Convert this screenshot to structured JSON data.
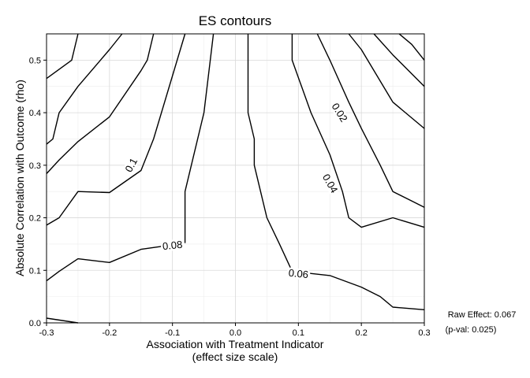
{
  "chart_data": {
    "type": "contour",
    "title": "ES contours",
    "xlabel": "Association with Treatment Indicator",
    "xlabel_sub": "(effect size scale)",
    "ylabel": "Absolute Correlation with Outcome (rho)",
    "xlim": [
      -0.3,
      0.3
    ],
    "ylim": [
      0,
      0.55
    ],
    "grid": true,
    "x_ticks": [
      {
        "value": -0.3,
        "label": "-0.3"
      },
      {
        "value": -0.2,
        "label": "-0.2"
      },
      {
        "value": -0.1,
        "label": "-0.1"
      },
      {
        "value": 0.0,
        "label": "0.0"
      },
      {
        "value": 0.1,
        "label": "0.1"
      },
      {
        "value": 0.2,
        "label": "0.2"
      },
      {
        "value": 0.3,
        "label": "0.3"
      }
    ],
    "y_ticks": [
      {
        "value": 0.0,
        "label": "0.0"
      },
      {
        "value": 0.1,
        "label": "0.1"
      },
      {
        "value": 0.2,
        "label": "0.2"
      },
      {
        "value": 0.3,
        "label": "0.3"
      },
      {
        "value": 0.4,
        "label": "0.4"
      },
      {
        "value": 0.5,
        "label": "0.5"
      }
    ],
    "annotation": {
      "line1": "Raw Effect: 0.067",
      "line2": "(p-val: 0.025)"
    },
    "contours": [
      {
        "id": "left-1",
        "points": [
          [
            -0.3,
            0.009
          ],
          [
            -0.25,
            0.0
          ]
        ]
      },
      {
        "id": "left-2",
        "points": [
          [
            -0.3,
            0.08
          ],
          [
            -0.28,
            0.098
          ],
          [
            -0.25,
            0.122
          ],
          [
            -0.2,
            0.115
          ],
          [
            -0.15,
            0.14
          ],
          [
            -0.12,
            0.145
          ],
          [
            -0.09,
            0.152
          ]
        ]
      },
      {
        "id": "left-3",
        "points": [
          [
            -0.3,
            0.186
          ],
          [
            -0.28,
            0.2
          ],
          [
            -0.25,
            0.25
          ],
          [
            -0.2,
            0.248
          ],
          [
            -0.15,
            0.29
          ],
          [
            -0.13,
            0.35
          ],
          [
            -0.08,
            0.55
          ]
        ]
      },
      {
        "id": "left-4",
        "points": [
          [
            -0.3,
            0.284
          ],
          [
            -0.28,
            0.31
          ],
          [
            -0.25,
            0.345
          ],
          [
            -0.2,
            0.392
          ],
          [
            -0.15,
            0.48
          ],
          [
            -0.14,
            0.5
          ],
          [
            -0.13,
            0.55
          ]
        ]
      },
      {
        "id": "left-5",
        "points": [
          [
            -0.3,
            0.34
          ],
          [
            -0.29,
            0.35
          ],
          [
            -0.28,
            0.4
          ],
          [
            -0.25,
            0.45
          ],
          [
            -0.2,
            0.52
          ],
          [
            -0.18,
            0.55
          ]
        ]
      },
      {
        "id": "left-6",
        "points": [
          [
            -0.3,
            0.465
          ],
          [
            -0.26,
            0.5
          ],
          [
            -0.25,
            0.55
          ]
        ]
      },
      {
        "id": "center-left",
        "points": [
          [
            -0.08,
            0.152
          ],
          [
            -0.08,
            0.2
          ],
          [
            -0.08,
            0.25
          ],
          [
            -0.07,
            0.3
          ],
          [
            -0.05,
            0.4
          ],
          [
            -0.04,
            0.5
          ],
          [
            -0.035,
            0.55
          ]
        ]
      },
      {
        "id": "center-right",
        "points": [
          [
            0.02,
            0.55
          ],
          [
            0.02,
            0.4
          ],
          [
            0.03,
            0.35
          ],
          [
            0.03,
            0.3
          ],
          [
            0.04,
            0.25
          ],
          [
            0.05,
            0.2
          ],
          [
            0.07,
            0.15
          ],
          [
            0.09,
            0.098
          ],
          [
            0.15,
            0.09
          ],
          [
            0.2,
            0.068
          ],
          [
            0.23,
            0.05
          ],
          [
            0.25,
            0.03
          ],
          [
            0.3,
            0.025
          ]
        ]
      },
      {
        "id": "right-1",
        "points": [
          [
            0.09,
            0.55
          ],
          [
            0.09,
            0.5
          ],
          [
            0.12,
            0.4
          ],
          [
            0.15,
            0.32
          ],
          [
            0.17,
            0.25
          ],
          [
            0.18,
            0.2
          ],
          [
            0.2,
            0.182
          ],
          [
            0.25,
            0.2
          ],
          [
            0.3,
            0.182
          ]
        ]
      },
      {
        "id": "right-2",
        "points": [
          [
            0.13,
            0.55
          ],
          [
            0.15,
            0.5
          ],
          [
            0.18,
            0.42
          ],
          [
            0.2,
            0.37
          ],
          [
            0.23,
            0.3
          ],
          [
            0.25,
            0.25
          ],
          [
            0.3,
            0.22
          ]
        ]
      },
      {
        "id": "right-3",
        "points": [
          [
            0.18,
            0.55
          ],
          [
            0.2,
            0.52
          ],
          [
            0.25,
            0.42
          ],
          [
            0.3,
            0.37
          ]
        ]
      },
      {
        "id": "right-4",
        "points": [
          [
            0.22,
            0.55
          ],
          [
            0.25,
            0.51
          ],
          [
            0.3,
            0.45
          ]
        ]
      },
      {
        "id": "right-5",
        "points": [
          [
            0.26,
            0.55
          ],
          [
            0.28,
            0.53
          ],
          [
            0.3,
            0.5
          ]
        ]
      }
    ],
    "contour_labels": [
      {
        "text": "0.1",
        "x": -0.165,
        "y": 0.3,
        "angle": -62
      },
      {
        "text": "0.08",
        "x": -0.1,
        "y": 0.147,
        "angle": -6
      },
      {
        "text": "0.06",
        "x": 0.1,
        "y": 0.093,
        "angle": 6
      },
      {
        "text": "0.04",
        "x": 0.15,
        "y": 0.265,
        "angle": 60
      },
      {
        "text": "0.02",
        "x": 0.165,
        "y": 0.4,
        "angle": 58
      }
    ]
  }
}
